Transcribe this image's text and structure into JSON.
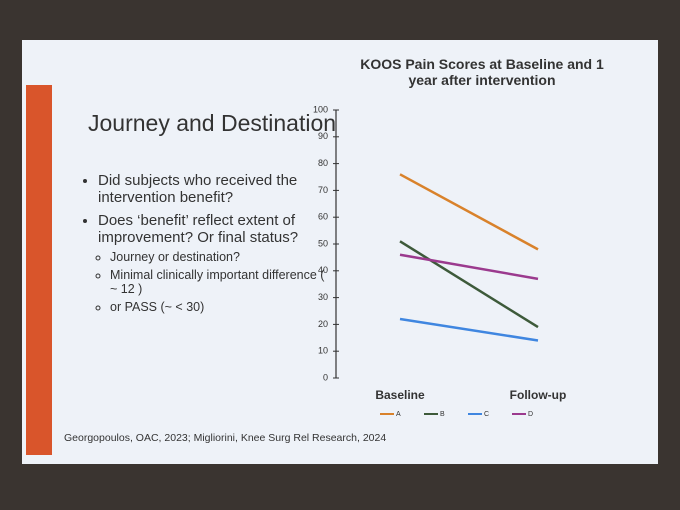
{
  "slide": {
    "title": "Journey and Destination",
    "bullets": [
      {
        "text": "Did subjects who received the intervention benefit?"
      },
      {
        "text": "Does ‘benefit’ reflect extent of improvement? Or final status?",
        "sub": [
          "Journey or destination?",
          "Minimal clinically important difference ( ~ 12 )",
          "or PASS  (~ < 30)"
        ]
      }
    ],
    "citation": "Georgopoulos,  OAC, 2023; Migliorini, Knee Surg Rel Research, 2024"
  },
  "chart_data": {
    "type": "line",
    "title": "KOOS Pain Scores at Baseline and 1 year after intervention",
    "categories": [
      "Baseline",
      "Follow-up"
    ],
    "series": [
      {
        "name": "A",
        "color": "#d9822b",
        "values": [
          76,
          48
        ]
      },
      {
        "name": "B",
        "color": "#3d5a3a",
        "values": [
          51,
          19
        ]
      },
      {
        "name": "C",
        "color": "#3f86e0",
        "values": [
          22,
          14
        ]
      },
      {
        "name": "D",
        "color": "#9b3a8e",
        "values": [
          46,
          37
        ]
      }
    ],
    "ylim": [
      0,
      100
    ],
    "yticks": [
      0,
      10,
      20,
      30,
      40,
      50,
      60,
      70,
      80,
      90,
      100
    ],
    "grid": false,
    "legend": "bottom"
  }
}
